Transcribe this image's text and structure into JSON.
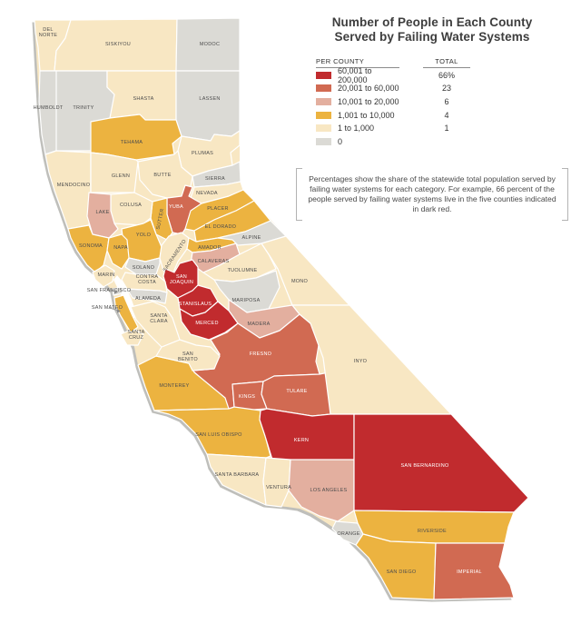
{
  "title": {
    "line1": "Number of People in Each County",
    "line2": "Served by Failing Water Systems"
  },
  "legend": {
    "column_headers": {
      "per_county": "PER COUNTY",
      "total": "TOTAL"
    },
    "rows": [
      {
        "range": "60,001 to 200,000",
        "total": "66%",
        "color": "#c12b2e"
      },
      {
        "range": "20,001 to 60,000",
        "total": "23",
        "color": "#d16a52"
      },
      {
        "range": "10,001 to 20,000",
        "total": "6",
        "color": "#e3af9f"
      },
      {
        "range": "1,001 to 10,000",
        "total": "4",
        "color": "#ecb340"
      },
      {
        "range": "1 to 1,000",
        "total": "1",
        "color": "#f8e7c3"
      },
      {
        "range": "0",
        "total": "",
        "color": "#dbdad5"
      }
    ]
  },
  "note": "Percentages show the share of the statewide total population served by failing water systems for each category. For example, 66 percent of the people served by failing water systems live in the five counties indicated in dark red.",
  "chart_data": {
    "type": "choropleth-map",
    "region": "California counties",
    "title": "Number of People in Each County Served by Failing Water Systems",
    "categories": [
      {
        "label": "60,001 to 200,000",
        "share_of_statewide_total": "66%",
        "color": "#c12b2e"
      },
      {
        "label": "20,001 to 60,000",
        "share_of_statewide_total": "23",
        "color": "#d16a52"
      },
      {
        "label": "10,001 to 20,000",
        "share_of_statewide_total": "6",
        "color": "#e3af9f"
      },
      {
        "label": "1,001 to 10,000",
        "share_of_statewide_total": "4",
        "color": "#ecb340"
      },
      {
        "label": "1 to 1,000",
        "share_of_statewide_total": "1",
        "color": "#f8e7c3"
      },
      {
        "label": "0",
        "share_of_statewide_total": "",
        "color": "#dbdad5"
      }
    ],
    "counties": [
      {
        "id": "del-norte",
        "name": "DEL NORTE",
        "category": "1 to 1,000"
      },
      {
        "id": "siskiyou",
        "name": "SISKIYOU",
        "category": "1 to 1,000"
      },
      {
        "id": "modoc",
        "name": "MODOC",
        "category": "0"
      },
      {
        "id": "humboldt",
        "name": "HUMBOLDT",
        "category": "0"
      },
      {
        "id": "trinity",
        "name": "TRINITY",
        "category": "0"
      },
      {
        "id": "shasta",
        "name": "SHASTA",
        "category": "1 to 1,000"
      },
      {
        "id": "lassen",
        "name": "LASSEN",
        "category": "0"
      },
      {
        "id": "tehama",
        "name": "TEHAMA",
        "category": "1,001 to 10,000"
      },
      {
        "id": "plumas",
        "name": "PLUMAS",
        "category": "1 to 1,000"
      },
      {
        "id": "mendocino",
        "name": "MENDOCINO",
        "category": "1 to 1,000"
      },
      {
        "id": "glenn",
        "name": "GLENN",
        "category": "1 to 1,000"
      },
      {
        "id": "butte",
        "name": "BUTTE",
        "category": "1 to 1,000"
      },
      {
        "id": "sierra",
        "name": "SIERRA",
        "category": "0"
      },
      {
        "id": "nevada",
        "name": "NEVADA",
        "category": "1 to 1,000"
      },
      {
        "id": "yuba",
        "name": "YUBA",
        "category": "20,001 to 60,000"
      },
      {
        "id": "sutter",
        "name": "SUTTER",
        "category": "1,001 to 10,000"
      },
      {
        "id": "colusa",
        "name": "COLUSA",
        "category": "1 to 1,000"
      },
      {
        "id": "lake",
        "name": "LAKE",
        "category": "10,001 to 20,000"
      },
      {
        "id": "placer",
        "name": "PLACER",
        "category": "1,001 to 10,000"
      },
      {
        "id": "el-dorado",
        "name": "EL DORADO",
        "category": "1,001 to 10,000"
      },
      {
        "id": "yolo",
        "name": "YOLO",
        "category": "1,001 to 10,000"
      },
      {
        "id": "sonoma",
        "name": "SONOMA",
        "category": "1,001 to 10,000"
      },
      {
        "id": "napa",
        "name": "NAPA",
        "category": "1,001 to 10,000"
      },
      {
        "id": "sacramento",
        "name": "SACRAMENTO",
        "category": "1 to 1,000"
      },
      {
        "id": "amador",
        "name": "AMADOR",
        "category": "1,001 to 10,000"
      },
      {
        "id": "alpine",
        "name": "ALPINE",
        "category": "0"
      },
      {
        "id": "calaveras",
        "name": "CALAVERAS",
        "category": "10,001 to 20,000"
      },
      {
        "id": "tuolumne",
        "name": "TUOLUMNE",
        "category": "1 to 1,000"
      },
      {
        "id": "mono",
        "name": "MONO",
        "category": "1 to 1,000"
      },
      {
        "id": "mariposa",
        "name": "MARIPOSA",
        "category": "0"
      },
      {
        "id": "madera",
        "name": "MADERA",
        "category": "10,001 to 20,000"
      },
      {
        "id": "san-joaquin",
        "name": "SAN JOAQUIN",
        "category": "60,001 to 200,000"
      },
      {
        "id": "stanislaus",
        "name": "STANISLAUS",
        "category": "60,001 to 200,000"
      },
      {
        "id": "merced",
        "name": "MERCED",
        "category": "60,001 to 200,000"
      },
      {
        "id": "fresno",
        "name": "FRESNO",
        "category": "20,001 to 60,000"
      },
      {
        "id": "kings",
        "name": "KINGS",
        "category": "20,001 to 60,000"
      },
      {
        "id": "tulare",
        "name": "TULARE",
        "category": "20,001 to 60,000"
      },
      {
        "id": "inyo",
        "name": "INYO",
        "category": "1 to 1,000"
      },
      {
        "id": "monterey",
        "name": "MONTEREY",
        "category": "1,001 to 10,000"
      },
      {
        "id": "san-benito",
        "name": "SAN BENITO",
        "category": "1 to 1,000"
      },
      {
        "id": "santa-cruz",
        "name": "SANTA CRUZ",
        "category": "1 to 1,000"
      },
      {
        "id": "santa-clara",
        "name": "SANTA CLARA",
        "category": "1 to 1,000"
      },
      {
        "id": "san-mateo",
        "name": "SAN MATEO",
        "category": "1,001 to 10,000"
      },
      {
        "id": "san-francisco",
        "name": "SAN FRANCISCO",
        "category": "0"
      },
      {
        "id": "alameda",
        "name": "ALAMEDA",
        "category": "0"
      },
      {
        "id": "contra-costa",
        "name": "CONTRA COSTA",
        "category": "1 to 1,000"
      },
      {
        "id": "marin",
        "name": "MARIN",
        "category": "1 to 1,000"
      },
      {
        "id": "solano",
        "name": "SOLANO",
        "category": "0"
      },
      {
        "id": "san-luis-obispo",
        "name": "SAN LUIS OBISPO",
        "category": "1,001 to 10,000"
      },
      {
        "id": "kern",
        "name": "KERN",
        "category": "60,001 to 200,000"
      },
      {
        "id": "santa-barbara",
        "name": "SANTA BARBARA",
        "category": "1 to 1,000"
      },
      {
        "id": "ventura",
        "name": "VENTURA",
        "category": "1 to 1,000"
      },
      {
        "id": "los-angeles",
        "name": "LOS ANGELES",
        "category": "10,001 to 20,000"
      },
      {
        "id": "orange",
        "name": "ORANGE",
        "category": "0"
      },
      {
        "id": "san-bernardino",
        "name": "SAN BERNARDINO",
        "category": "60,001 to 200,000"
      },
      {
        "id": "riverside",
        "name": "RIVERSIDE",
        "category": "1,001 to 10,000"
      },
      {
        "id": "san-diego",
        "name": "SAN DIEGO",
        "category": "1,001 to 10,000"
      },
      {
        "id": "imperial",
        "name": "IMPERIAL",
        "category": "20,001 to 60,000"
      }
    ]
  }
}
